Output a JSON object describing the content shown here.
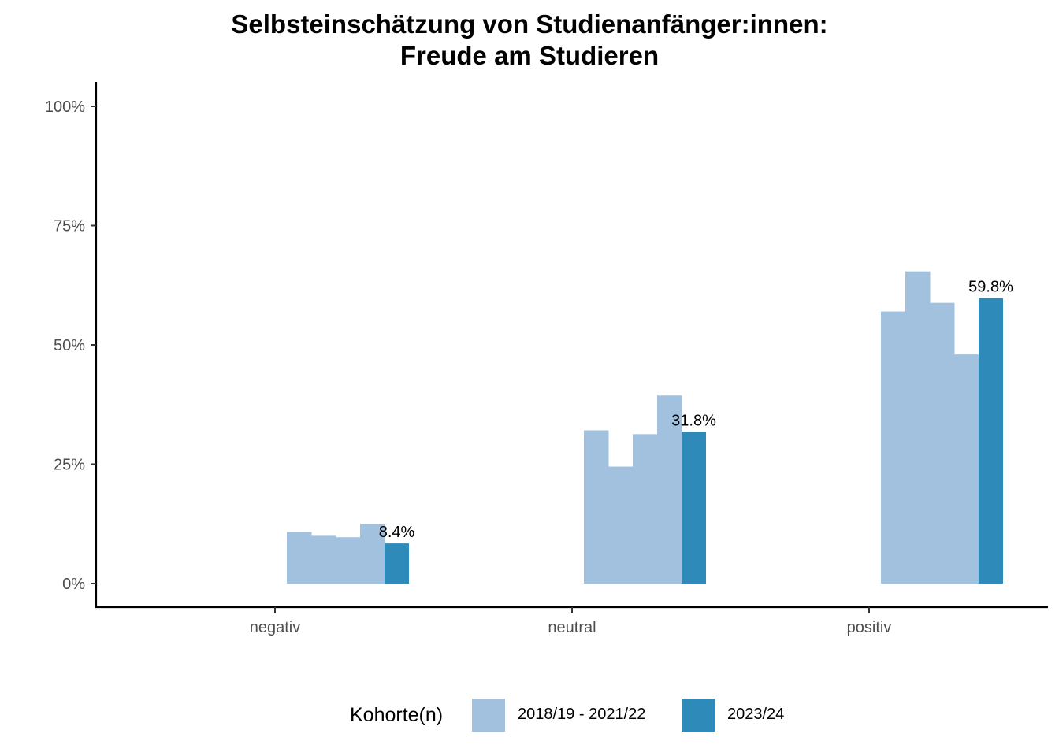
{
  "title_line1": "Selbsteinschätzung von Studienanfänger:innen:",
  "title_line2": "Freude am Studieren",
  "legend": {
    "title": "Kohorte(n)",
    "items": [
      {
        "label": "2018/19 - 2021/22",
        "color": "#a1c1de"
      },
      {
        "label": "2023/24",
        "color": "#2e8ab8"
      }
    ]
  },
  "chart_data": {
    "type": "bar",
    "categories": [
      "negativ",
      "neutral",
      "positiv"
    ],
    "ylim": [
      0,
      1.05
    ],
    "yticks": [
      {
        "value": 0,
        "label": "0%"
      },
      {
        "value": 0.25,
        "label": "25%"
      },
      {
        "value": 0.5,
        "label": "50%"
      },
      {
        "value": 0.75,
        "label": "75%"
      },
      {
        "value": 1.0,
        "label": "100%"
      }
    ],
    "series": [
      {
        "name": "2018/19 - 2021/22",
        "color": "#a1c1de",
        "values": [
          [
            0.108,
            0.1,
            0.097,
            0.125
          ],
          [
            0.321,
            0.245,
            0.313,
            0.394
          ],
          [
            0.57,
            0.654,
            0.588,
            0.48
          ]
        ]
      },
      {
        "name": "2023/24",
        "color": "#2e8ab8",
        "values": [
          0.084,
          0.318,
          0.598
        ],
        "labels": [
          "8.4%",
          "31.8%",
          "59.8%"
        ]
      }
    ],
    "grid": false,
    "legend_position": "bottom"
  }
}
